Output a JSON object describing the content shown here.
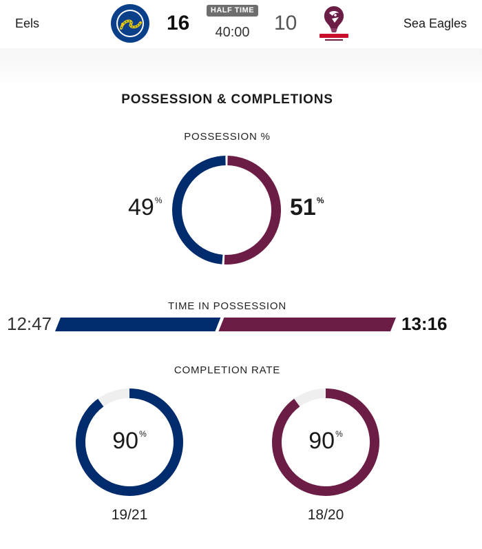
{
  "colors": {
    "home": "#002b6c",
    "away": "#6c1d45",
    "track": "#efefef"
  },
  "header": {
    "home": {
      "name": "Eels",
      "score": "16",
      "logo_icon": "parramatta-eels-logo-icon"
    },
    "away": {
      "name": "Sea Eagles",
      "score": "10",
      "logo_icon": "manly-sea-eagles-logo-icon"
    },
    "period": "HALF TIME",
    "clock": "40:00"
  },
  "section_title": "POSSESSION & COMPLETIONS",
  "possession": {
    "label": "POSSESSION %",
    "home_value": "49",
    "away_value": "51",
    "unit": "%",
    "home_pct": 49,
    "away_pct": 51
  },
  "time_in_possession": {
    "label": "TIME IN POSSESSION",
    "home": "12:47",
    "away": "13:16",
    "home_seconds": 767,
    "away_seconds": 796
  },
  "completion_rate": {
    "label": "COMPLETION RATE",
    "unit": "%",
    "home": {
      "pct": "90",
      "count": "19/21",
      "fraction": 0.9
    },
    "away": {
      "pct": "90",
      "count": "18/20",
      "fraction": 0.9
    }
  }
}
